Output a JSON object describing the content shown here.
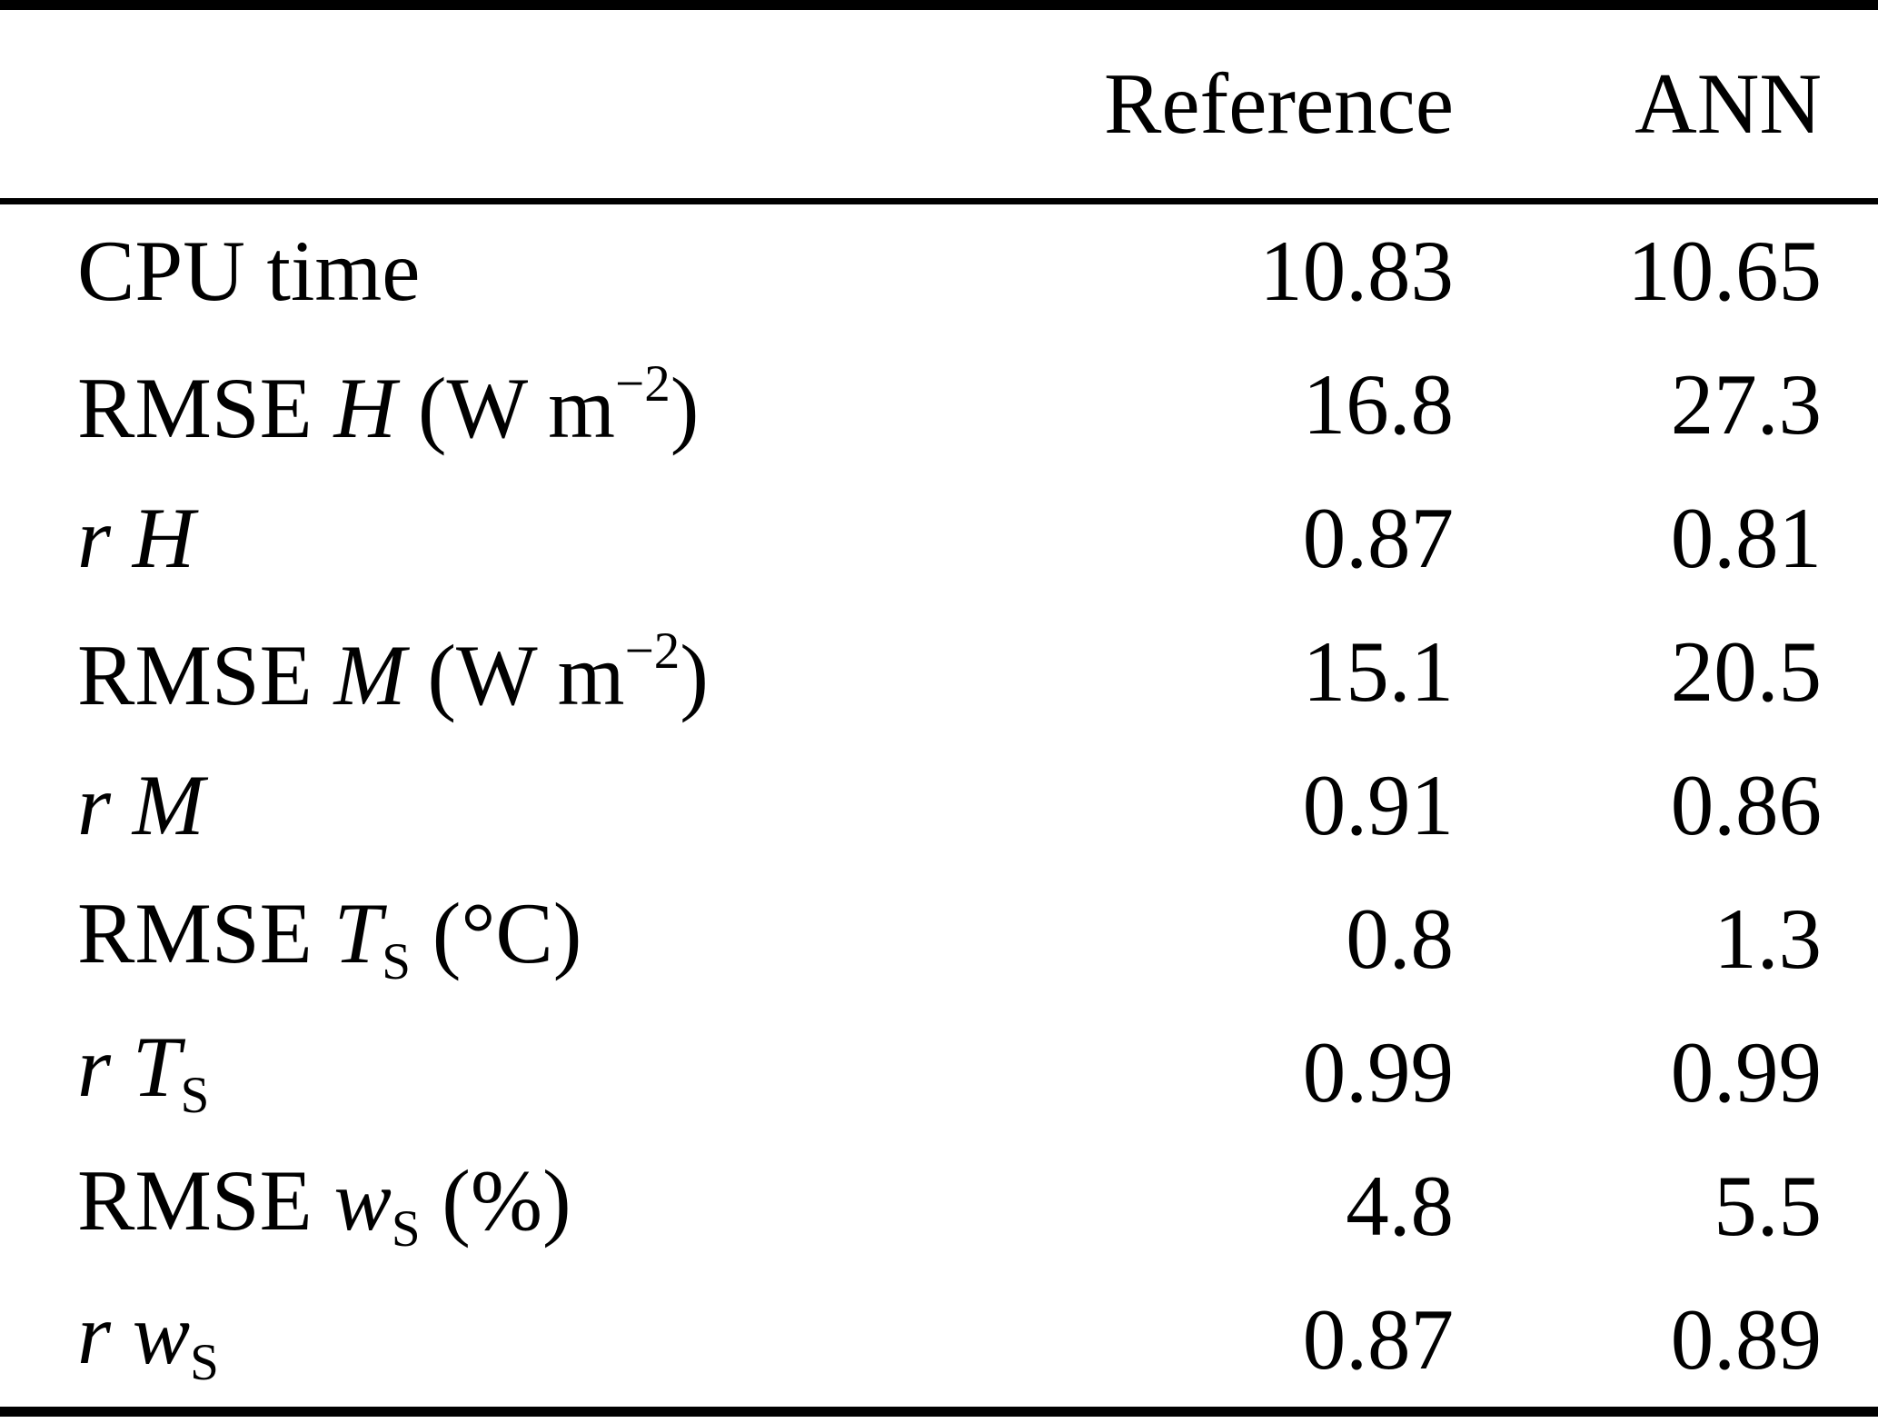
{
  "table": {
    "headers": {
      "metric": "",
      "reference": "Reference",
      "ann": "ANN"
    },
    "rows": [
      {
        "metric": [
          {
            "t": "CPU time"
          }
        ],
        "reference": "10.83",
        "ann": "10.65"
      },
      {
        "metric": [
          {
            "t": "RMSE "
          },
          {
            "t": "H",
            "s": "i"
          },
          {
            "t": " (W m"
          },
          {
            "t": "−2",
            "s": "sup"
          },
          {
            "t": ")"
          }
        ],
        "reference": "16.8",
        "ann": "27.3"
      },
      {
        "metric": [
          {
            "t": "r H",
            "s": "i"
          }
        ],
        "reference": "0.87",
        "ann": "0.81"
      },
      {
        "metric": [
          {
            "t": "RMSE "
          },
          {
            "t": "M",
            "s": "i"
          },
          {
            "t": " (W m"
          },
          {
            "t": "−2",
            "s": "sup"
          },
          {
            "t": ")"
          }
        ],
        "reference": "15.1",
        "ann": "20.5"
      },
      {
        "metric": [
          {
            "t": "r M",
            "s": "i"
          }
        ],
        "reference": "0.91",
        "ann": "0.86"
      },
      {
        "metric": [
          {
            "t": "RMSE "
          },
          {
            "t": "T",
            "s": "i"
          },
          {
            "t": "S",
            "s": "sub"
          },
          {
            "t": " (°C)"
          }
        ],
        "reference": "0.8",
        "ann": "1.3"
      },
      {
        "metric": [
          {
            "t": "r T",
            "s": "i"
          },
          {
            "t": "S",
            "s": "sub"
          }
        ],
        "reference": "0.99",
        "ann": "0.99"
      },
      {
        "metric": [
          {
            "t": "RMSE "
          },
          {
            "t": "w",
            "s": "i"
          },
          {
            "t": "S",
            "s": "sub"
          },
          {
            "t": " (%)"
          }
        ],
        "reference": "4.8",
        "ann": "5.5"
      },
      {
        "metric": [
          {
            "t": "r w",
            "s": "i"
          },
          {
            "t": "S",
            "s": "sub"
          }
        ],
        "reference": "0.87",
        "ann": "0.89"
      }
    ]
  }
}
